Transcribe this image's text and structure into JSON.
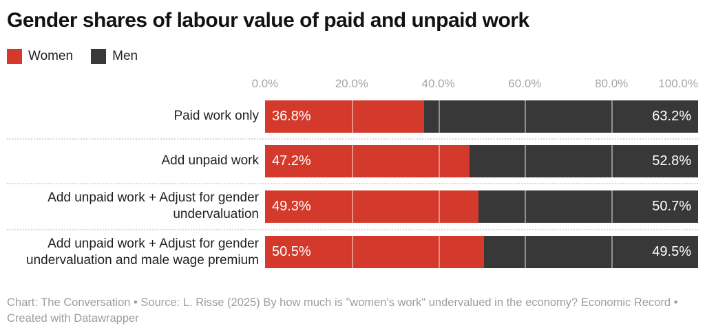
{
  "title": "Gender shares of labour value of paid and unpaid work",
  "legend": {
    "women_label": "Women",
    "men_label": "Men"
  },
  "colors": {
    "women": "#d33a2c",
    "men": "#383838",
    "axis_text": "#a5a5a5",
    "footer_text": "#9d9d9d"
  },
  "chart_data": {
    "type": "bar",
    "stacked": true,
    "orientation": "horizontal",
    "title": "Gender shares of labour value of paid and unpaid work",
    "categories": [
      "Paid work only",
      "Add unpaid work",
      "Add unpaid work + Adjust for gender undervaluation",
      "Add unpaid work + Adjust for gender undervaluation and male wage premium"
    ],
    "series": [
      {
        "name": "Women",
        "color": "#d33a2c",
        "values": [
          36.8,
          47.2,
          49.3,
          50.5
        ],
        "labels": [
          "36.8%",
          "47.2%",
          "49.3%",
          "50.5%"
        ]
      },
      {
        "name": "Men",
        "color": "#383838",
        "values": [
          63.2,
          52.8,
          50.7,
          49.5
        ],
        "labels": [
          "63.2%",
          "52.8%",
          "50.7%",
          "49.5%"
        ]
      }
    ],
    "xlim": [
      0,
      100
    ],
    "x_ticks": [
      "0.0%",
      "20.0%",
      "40.0%",
      "60.0%",
      "80.0%",
      "100.0%"
    ],
    "gridlines_over_bars": [
      20,
      40,
      60,
      80
    ],
    "legend_position": "top-left",
    "value_label_position": "inside-edges"
  },
  "footer": "Chart: The Conversation • Source: L. Risse (2025) By how much is \"women's work\" undervalued in the economy? Economic Record • Created with Datawrapper"
}
